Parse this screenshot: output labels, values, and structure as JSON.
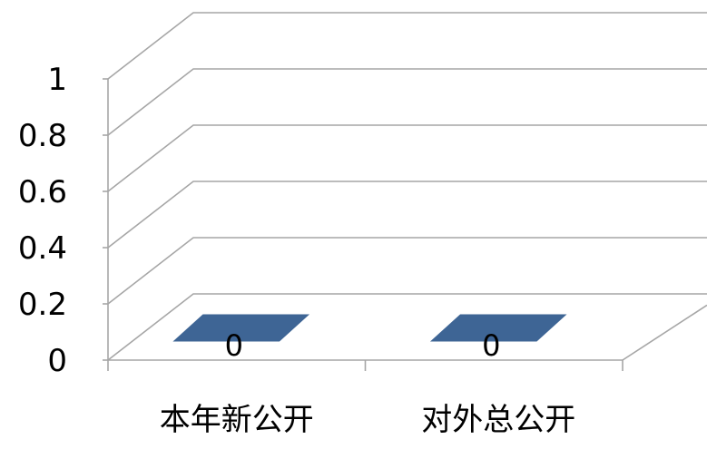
{
  "chart_data": {
    "type": "bar",
    "style": "3d-column",
    "categories": [
      "本年新公开",
      "对外总公开"
    ],
    "values": [
      0,
      0
    ],
    "data_labels": [
      "0",
      "0"
    ],
    "ylim": [
      0,
      1
    ],
    "yticks": [
      "0",
      "0.2",
      "0.4",
      "0.6",
      "0.8",
      "1"
    ],
    "grid": true,
    "legend": "none",
    "title": "",
    "xlabel": "",
    "ylabel": "",
    "colors": {
      "bar": "#3e6595",
      "grid": "#a6a6a6",
      "text": "#000000"
    }
  }
}
